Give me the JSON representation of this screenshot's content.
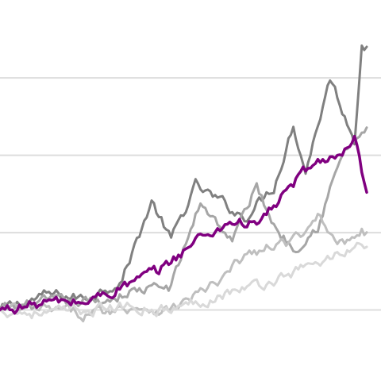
{
  "chart_data": {
    "type": "line",
    "title": "",
    "xlabel": "",
    "ylabel": "",
    "grid": "horizontal",
    "legend": "none",
    "xlim": [
      0,
      150
    ],
    "ylim": [
      0,
      5
    ],
    "gridlines": [
      1,
      2,
      3,
      4
    ],
    "series": [
      {
        "color": "#808080",
        "highlight": false,
        "anchors": [
          [
            0,
            1
          ],
          [
            20,
            1.2
          ],
          [
            35,
            1.15
          ],
          [
            50,
            1.4
          ],
          [
            62,
            2.4
          ],
          [
            70,
            1.9
          ],
          [
            80,
            2.6
          ],
          [
            100,
            2.2
          ],
          [
            112,
            2.6
          ],
          [
            120,
            3.4
          ],
          [
            125,
            2.8
          ],
          [
            135,
            4.0
          ],
          [
            145,
            3.2
          ],
          [
            148,
            4.5
          ],
          [
            150,
            4.4
          ]
        ]
      },
      {
        "color": "#a6a6a6",
        "highlight": false,
        "anchors": [
          [
            0,
            1
          ],
          [
            20,
            1.1
          ],
          [
            40,
            1.1
          ],
          [
            55,
            1.25
          ],
          [
            70,
            1.3
          ],
          [
            82,
            2.4
          ],
          [
            95,
            1.9
          ],
          [
            105,
            2.6
          ],
          [
            112,
            2.1
          ],
          [
            120,
            1.8
          ],
          [
            130,
            2.1
          ],
          [
            140,
            3.0
          ],
          [
            145,
            3.2
          ],
          [
            150,
            3.3
          ]
        ]
      },
      {
        "color": "#800080",
        "highlight": true,
        "anchors": [
          [
            0,
            1
          ],
          [
            20,
            1.1
          ],
          [
            35,
            1.1
          ],
          [
            50,
            1.3
          ],
          [
            65,
            1.5
          ],
          [
            80,
            1.9
          ],
          [
            95,
            2.15
          ],
          [
            105,
            2.1
          ],
          [
            115,
            2.45
          ],
          [
            125,
            2.8
          ],
          [
            135,
            3.0
          ],
          [
            140,
            2.95
          ],
          [
            145,
            3.2
          ],
          [
            150,
            2.45
          ]
        ]
      },
      {
        "color": "#bfbfbf",
        "highlight": false,
        "anchors": [
          [
            0,
            1
          ],
          [
            20,
            1.0
          ],
          [
            35,
            0.95
          ],
          [
            55,
            1.05
          ],
          [
            70,
            1.0
          ],
          [
            80,
            1.2
          ],
          [
            90,
            1.35
          ],
          [
            100,
            1.7
          ],
          [
            115,
            1.85
          ],
          [
            125,
            1.95
          ],
          [
            130,
            2.25
          ],
          [
            140,
            1.85
          ],
          [
            148,
            2.05
          ],
          [
            150,
            2.0
          ]
        ]
      },
      {
        "color": "#d9d9d9",
        "highlight": false,
        "anchors": [
          [
            0,
            1
          ],
          [
            20,
            0.95
          ],
          [
            35,
            1.0
          ],
          [
            55,
            1.05
          ],
          [
            70,
            1.0
          ],
          [
            80,
            1.1
          ],
          [
            95,
            1.25
          ],
          [
            110,
            1.35
          ],
          [
            120,
            1.5
          ],
          [
            130,
            1.6
          ],
          [
            140,
            1.75
          ],
          [
            148,
            1.85
          ],
          [
            150,
            1.8
          ]
        ]
      }
    ]
  }
}
